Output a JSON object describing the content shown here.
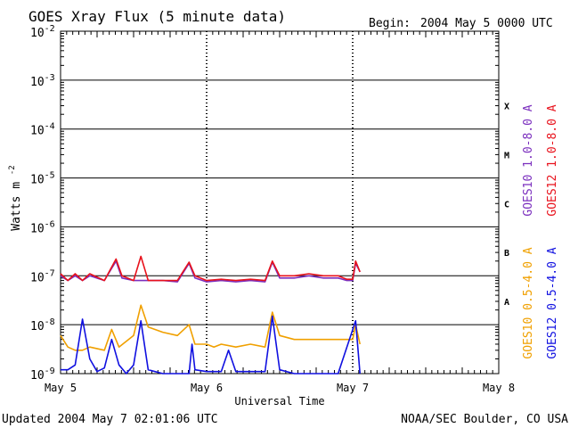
{
  "chart_data": {
    "type": "line",
    "title": "GOES Xray Flux (5 minute data)",
    "begin_label": "Begin:",
    "begin_value": "2004 May 5 0000 UTC",
    "ylabel_text": "Watts m",
    "ylabel_exp": "-2",
    "xlabel": "Universal Time",
    "y_scale": "log",
    "y_range": [
      1e-09,
      0.01
    ],
    "y_ticks": [
      {
        "value": 0.01,
        "base": "10",
        "exp": "-2"
      },
      {
        "value": 0.001,
        "base": "10",
        "exp": "-3"
      },
      {
        "value": 0.0001,
        "base": "10",
        "exp": "-4"
      },
      {
        "value": 1e-05,
        "base": "10",
        "exp": "-5"
      },
      {
        "value": 1e-06,
        "base": "10",
        "exp": "-6"
      },
      {
        "value": 1e-07,
        "base": "10",
        "exp": "-7"
      },
      {
        "value": 1e-08,
        "base": "10",
        "exp": "-8"
      },
      {
        "value": 1e-09,
        "base": "10",
        "exp": "-9"
      }
    ],
    "x_range_days": [
      0,
      3
    ],
    "x_ticks": [
      {
        "value": 0,
        "label": "May 5"
      },
      {
        "value": 1,
        "label": "May 6"
      },
      {
        "value": 2,
        "label": "May 7"
      },
      {
        "value": 3,
        "label": "May 8"
      }
    ],
    "grid": true,
    "flare_classes": [
      {
        "label": "X",
        "value": 0.0003
      },
      {
        "label": "M",
        "value": 3e-05
      },
      {
        "label": "C",
        "value": 3e-06
      },
      {
        "label": "B",
        "value": 3e-07
      },
      {
        "label": "A",
        "value": 3e-08
      }
    ],
    "series": [
      {
        "name": "GOES10 1.0-8.0 A",
        "color": "#7b2fbe",
        "x": [
          0,
          0.05,
          0.1,
          0.15,
          0.2,
          0.3,
          0.38,
          0.42,
          0.5,
          0.6,
          0.7,
          0.8,
          0.88,
          0.92,
          1.0,
          1.1,
          1.2,
          1.3,
          1.4,
          1.45,
          1.5,
          1.6,
          1.7,
          1.8,
          1.9,
          1.96,
          2.0,
          2.02,
          2.05
        ],
        "y": [
          1e-07,
          8e-08,
          1e-07,
          8e-08,
          1e-07,
          8e-08,
          2e-07,
          9e-08,
          8e-08,
          8e-08,
          8e-08,
          7.5e-08,
          1.8e-07,
          9e-08,
          7.5e-08,
          8e-08,
          7.5e-08,
          8e-08,
          7.5e-08,
          1.9e-07,
          9e-08,
          9e-08,
          1e-07,
          9e-08,
          9e-08,
          8e-08,
          8e-08,
          1.8e-07,
          1.2e-07
        ]
      },
      {
        "name": "GOES12 1.0-8.0 A",
        "color": "#e8121c",
        "x": [
          0,
          0.05,
          0.1,
          0.15,
          0.2,
          0.3,
          0.38,
          0.42,
          0.5,
          0.55,
          0.6,
          0.7,
          0.8,
          0.88,
          0.92,
          1.0,
          1.1,
          1.2,
          1.3,
          1.4,
          1.45,
          1.5,
          1.6,
          1.7,
          1.8,
          1.9,
          1.96,
          2.0,
          2.02,
          2.05
        ],
        "y": [
          1.1e-07,
          8e-08,
          1.1e-07,
          8e-08,
          1.1e-07,
          8e-08,
          2.2e-07,
          1e-07,
          8e-08,
          2.5e-07,
          8e-08,
          8e-08,
          8e-08,
          1.9e-07,
          1e-07,
          8e-08,
          8.5e-08,
          8e-08,
          8.5e-08,
          8e-08,
          2e-07,
          1e-07,
          1e-07,
          1.1e-07,
          1e-07,
          1e-07,
          8.5e-08,
          8.5e-08,
          2e-07,
          1.2e-07
        ]
      },
      {
        "name": "GOES10 0.5-4.0 A",
        "color": "#f0a000",
        "x": [
          0,
          0.05,
          0.1,
          0.15,
          0.2,
          0.3,
          0.35,
          0.4,
          0.5,
          0.55,
          0.6,
          0.7,
          0.8,
          0.88,
          0.92,
          1.0,
          1.05,
          1.1,
          1.2,
          1.3,
          1.4,
          1.45,
          1.5,
          1.6,
          1.7,
          1.8,
          1.9,
          1.96,
          2.0,
          2.02,
          2.05
        ],
        "y": [
          6e-09,
          3.5e-09,
          3e-09,
          3e-09,
          3.5e-09,
          3e-09,
          8e-09,
          3.5e-09,
          6e-09,
          2.5e-08,
          9e-09,
          7e-09,
          6e-09,
          1e-08,
          4e-09,
          4e-09,
          3.5e-09,
          4e-09,
          3.5e-09,
          4e-09,
          3.5e-09,
          1.8e-08,
          6e-09,
          5e-09,
          5e-09,
          5e-09,
          5e-09,
          5e-09,
          5e-09,
          1e-08,
          4e-09
        ]
      },
      {
        "name": "GOES12 0.5-4.0 A",
        "color": "#1010e0",
        "x": [
          0,
          0.05,
          0.1,
          0.15,
          0.2,
          0.25,
          0.3,
          0.35,
          0.4,
          0.45,
          0.5,
          0.55,
          0.6,
          0.7,
          0.8,
          0.88,
          0.9,
          0.92,
          1.0,
          1.1,
          1.15,
          1.2,
          1.3,
          1.4,
          1.45,
          1.5,
          1.6,
          1.7,
          1.8,
          1.9,
          2.02,
          2.05
        ],
        "y": [
          1.2e-09,
          1.2e-09,
          1.5e-09,
          1.3e-08,
          2e-09,
          1.1e-09,
          1.3e-09,
          5e-09,
          1.5e-09,
          1e-09,
          1.5e-09,
          1.2e-08,
          1.2e-09,
          1e-09,
          1e-09,
          1e-09,
          4e-09,
          1.2e-09,
          1.1e-09,
          1.1e-09,
          3e-09,
          1.1e-09,
          1.1e-09,
          1.1e-09,
          1.5e-08,
          1.2e-09,
          1e-09,
          1e-09,
          1e-09,
          1e-09,
          1.2e-08,
          1e-09
        ]
      }
    ],
    "footer_left": "Updated 2004 May  7 02:01:06 UTC",
    "footer_right": "NOAA/SEC Boulder, CO USA"
  }
}
